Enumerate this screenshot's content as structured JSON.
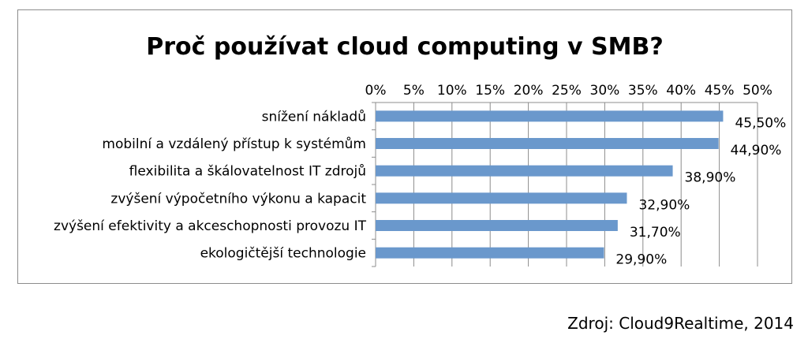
{
  "chart_data": {
    "type": "bar",
    "orientation": "horizontal",
    "title": "Proč používat cloud computing v SMB?",
    "categories": [
      "snížení nákladů",
      "mobilní a vzdálený přístup k systémům",
      "flexibilita a škálovatelnost IT zdrojů",
      "zvýšení výpočetního výkonu a kapacit",
      "zvýšení efektivity a akceschopnosti provozu IT",
      "ekologičtější technologie"
    ],
    "values": [
      45.5,
      44.9,
      38.9,
      32.9,
      31.7,
      29.9
    ],
    "data_labels": [
      "45,50%",
      "44,90%",
      "38,90%",
      "32,90%",
      "31,70%",
      "29,90%"
    ],
    "x_ticks": [
      "0%",
      "5%",
      "10%",
      "15%",
      "20%",
      "25%",
      "30%",
      "35%",
      "40%",
      "45%",
      "50%"
    ],
    "xlim": [
      0,
      50
    ],
    "x_axis_position": "top",
    "grid": "vertical",
    "legend": "none",
    "bar_color": "#6a98cc"
  },
  "source": "Zdroj: Cloud9Realtime, 2014"
}
